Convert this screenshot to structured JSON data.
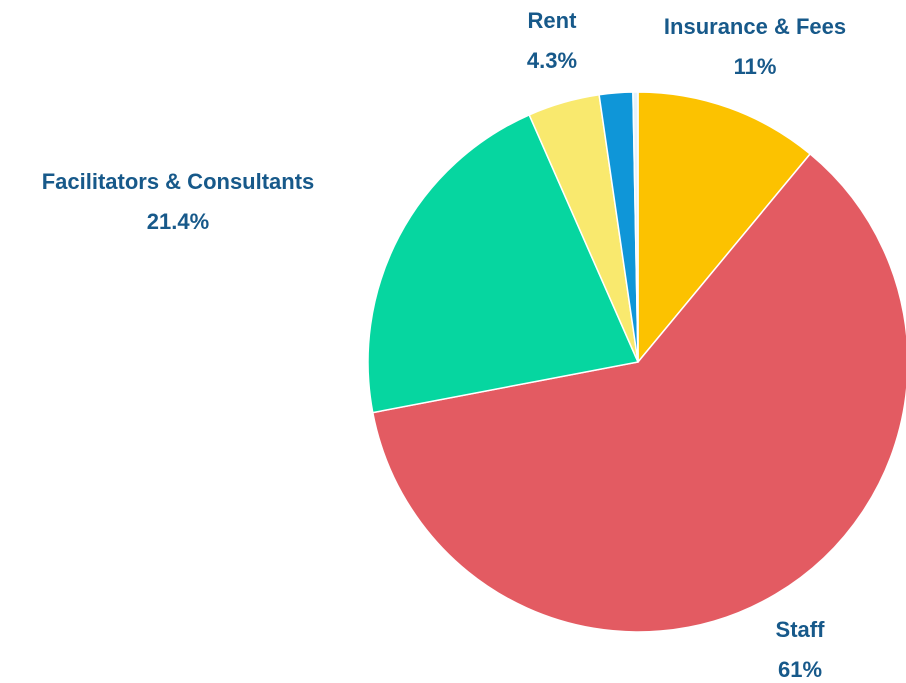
{
  "chart_data": {
    "type": "pie",
    "categories": [
      "Insurance & Fees",
      "Staff",
      "Facilitators & Consultants",
      "Rent",
      null,
      null
    ],
    "values": [
      11,
      61,
      21.4,
      4.3,
      2,
      0.3
    ],
    "value_labels": [
      "11%",
      "61%",
      "21.4%",
      "4.3%",
      null,
      null
    ],
    "colors": [
      "#fcc200",
      "#e35b62",
      "#06d6a0",
      "#f9e96e",
      "#0f96d8",
      "#e6f2fa"
    ]
  }
}
